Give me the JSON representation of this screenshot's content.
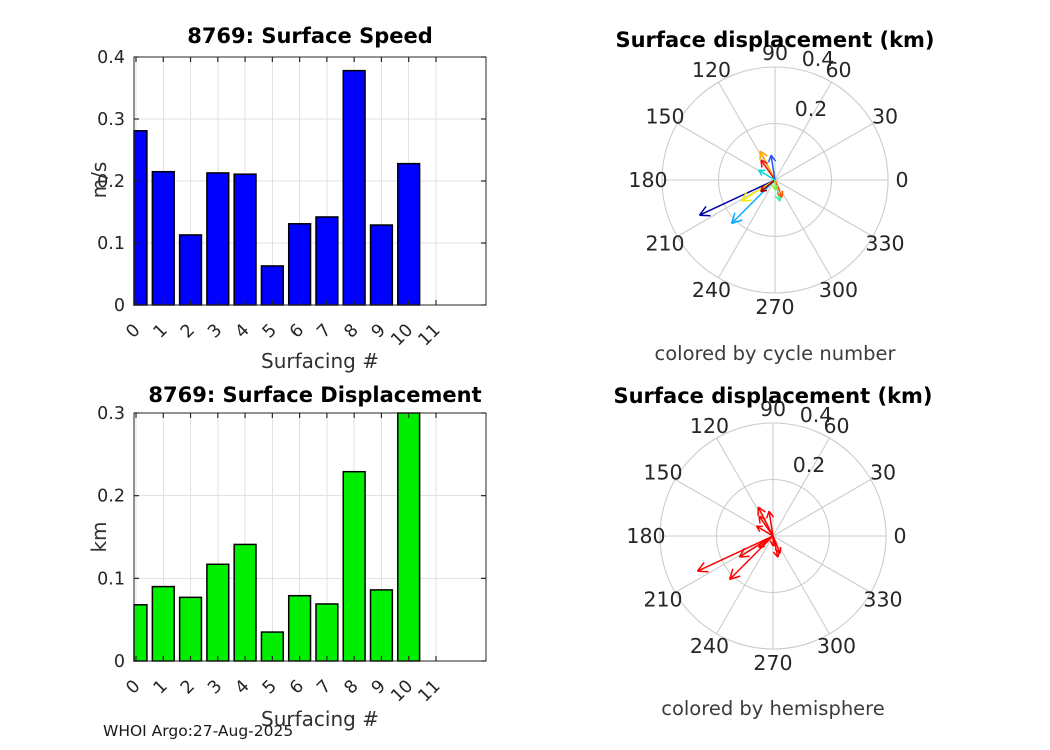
{
  "figure": {
    "background": "#FFFFFF"
  },
  "footer": {
    "text": "WHOI Argo:27-Aug-2025"
  },
  "chart_data": [
    {
      "type": "bar",
      "title": "8769: Surface Speed",
      "xlabel": "Surfacing #",
      "ylabel": "m/s",
      "categories": [
        "0",
        "1",
        "2",
        "3",
        "4",
        "5",
        "6",
        "7",
        "8",
        "9",
        "10",
        "11"
      ],
      "values": [
        0.281,
        0.215,
        0.113,
        0.213,
        0.211,
        0.063,
        0.131,
        0.142,
        0.378,
        0.129,
        0.228,
        null
      ],
      "ylim": [
        0,
        0.4
      ],
      "yticks": [
        "0",
        "0.1",
        "0.2",
        "0.3",
        "0.4"
      ],
      "grid": true,
      "legend": "none",
      "bar_color": "#0000FF",
      "bar_edge_color": "#000000"
    },
    {
      "type": "polar_quiver",
      "title": "Surface displacement (km)",
      "caption": "colored by cycle number",
      "r_max": 0.4,
      "r_ticks": [
        "0.2",
        "0.4"
      ],
      "angle_ticks": [
        "0",
        "30",
        "60",
        "90",
        "120",
        "150",
        "180",
        "210",
        "240",
        "270",
        "300",
        "330"
      ],
      "arrows": [
        {
          "angle_deg": 205,
          "r_km": 0.295,
          "color": "#0000A8"
        },
        {
          "angle_deg": 225,
          "r_km": 0.217,
          "color": "#00AAFF"
        },
        {
          "angle_deg": 212,
          "r_km": 0.14,
          "color": "#EEEE00"
        },
        {
          "angle_deg": 219,
          "r_km": 0.065,
          "color": "#A80000"
        },
        {
          "angle_deg": 117,
          "r_km": 0.115,
          "color": "#FFA500"
        },
        {
          "angle_deg": 125,
          "r_km": 0.086,
          "color": "#EE1100"
        },
        {
          "angle_deg": 99,
          "r_km": 0.089,
          "color": "#2255FF"
        },
        {
          "angle_deg": 149,
          "r_km": 0.068,
          "color": "#00DDDD"
        },
        {
          "angle_deg": 283,
          "r_km": 0.077,
          "color": "#44EEAA"
        },
        {
          "angle_deg": 292,
          "r_km": 0.066,
          "color": "#FF5500"
        },
        {
          "angle_deg": 271,
          "r_km": 0.036,
          "color": "#88EE44"
        }
      ]
    },
    {
      "type": "bar",
      "title": "8769: Surface Displacement",
      "xlabel": "Surfacing #",
      "ylabel": "km",
      "categories": [
        "0",
        "1",
        "2",
        "3",
        "4",
        "5",
        "6",
        "7",
        "8",
        "9",
        "10",
        "11"
      ],
      "values": [
        0.068,
        0.09,
        0.077,
        0.117,
        0.141,
        0.035,
        0.079,
        0.069,
        0.229,
        0.086,
        0.303,
        null
      ],
      "ylim": [
        0,
        0.3
      ],
      "yticks": [
        "0",
        "0.1",
        "0.2",
        "0.3"
      ],
      "grid": true,
      "legend": "none",
      "bar_color": "#00EF00",
      "bar_edge_color": "#000000"
    },
    {
      "type": "polar_quiver",
      "title": "Surface displacement (km)",
      "caption": "colored by hemisphere",
      "r_max": 0.4,
      "r_ticks": [
        "0.2",
        "0.4"
      ],
      "angle_ticks": [
        "0",
        "30",
        "60",
        "90",
        "120",
        "150",
        "180",
        "210",
        "240",
        "270",
        "300",
        "330"
      ],
      "arrows": [
        {
          "angle_deg": 205,
          "r_km": 0.295,
          "color": "#FF0000"
        },
        {
          "angle_deg": 225,
          "r_km": 0.217,
          "color": "#FF0000"
        },
        {
          "angle_deg": 212,
          "r_km": 0.14,
          "color": "#FF0000"
        },
        {
          "angle_deg": 219,
          "r_km": 0.065,
          "color": "#FF0000"
        },
        {
          "angle_deg": 117,
          "r_km": 0.115,
          "color": "#FF0000"
        },
        {
          "angle_deg": 125,
          "r_km": 0.086,
          "color": "#FF0000"
        },
        {
          "angle_deg": 99,
          "r_km": 0.089,
          "color": "#FF0000"
        },
        {
          "angle_deg": 149,
          "r_km": 0.068,
          "color": "#FF0000"
        },
        {
          "angle_deg": 283,
          "r_km": 0.077,
          "color": "#FF0000"
        },
        {
          "angle_deg": 292,
          "r_km": 0.066,
          "color": "#FF0000"
        },
        {
          "angle_deg": 271,
          "r_km": 0.036,
          "color": "#FF0000"
        }
      ]
    }
  ]
}
